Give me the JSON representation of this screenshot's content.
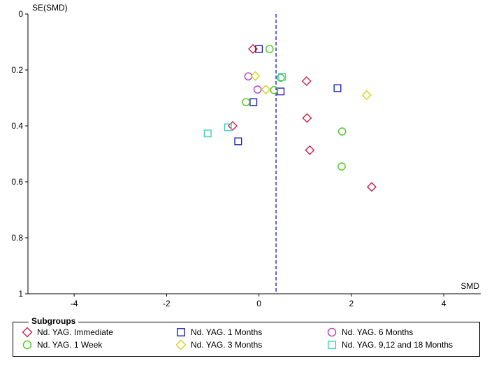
{
  "chart_data": {
    "type": "scatter",
    "title": "",
    "xlabel": "SMD",
    "ylabel": "SE(SMD)",
    "xlim": [
      -5,
      4.8
    ],
    "ylim": [
      0,
      1
    ],
    "y_reversed": true,
    "xticks": [
      -4,
      -2,
      0,
      2,
      4
    ],
    "yticks": [
      0,
      0.2,
      0.4,
      0.6,
      0.8,
      1
    ],
    "reference_line": {
      "x": 0.37,
      "style": "dashed",
      "color": "#3333cc"
    },
    "grid": false,
    "legend_title": "Subgroups",
    "legend_placement": "bottom",
    "series": [
      {
        "name": "Nd. YAG. Immediate",
        "marker": "diamond",
        "color": "#cc1f4e",
        "x": [
          -0.13,
          1.03,
          1.04,
          -0.57,
          1.1,
          2.44
        ],
        "y": [
          0.125,
          0.24,
          0.372,
          0.4,
          0.487,
          0.618
        ]
      },
      {
        "name": "Nd. YAG. 1 Months",
        "marker": "square",
        "color": "#1f1fb4",
        "x": [
          0.0,
          1.7,
          0.47,
          -0.12,
          -0.45
        ],
        "y": [
          0.125,
          0.265,
          0.277,
          0.315,
          0.455
        ]
      },
      {
        "name": "Nd. YAG. 6 Months",
        "marker": "circle",
        "color": "#b43cc8",
        "x": [
          -0.23,
          -0.03
        ],
        "y": [
          0.223,
          0.27
        ]
      },
      {
        "name": "Nd. YAG. 1 Week",
        "marker": "circle",
        "color": "#4cc81e",
        "x": [
          0.23,
          0.47,
          0.33,
          -0.28,
          1.8,
          1.79
        ],
        "y": [
          0.125,
          0.228,
          0.272,
          0.315,
          0.42,
          0.545
        ]
      },
      {
        "name": "Nd. YAG. 3 Months",
        "marker": "diamond",
        "color": "#d2d21e",
        "x": [
          -0.08,
          0.15,
          2.33
        ],
        "y": [
          0.222,
          0.27,
          0.29
        ]
      },
      {
        "name": "Nd. YAG. 9,12 and 18 Months",
        "marker": "square",
        "color": "#3cd2b4",
        "x": [
          0.5,
          -0.67,
          -1.11
        ],
        "y": [
          0.225,
          0.405,
          0.427
        ]
      }
    ]
  }
}
